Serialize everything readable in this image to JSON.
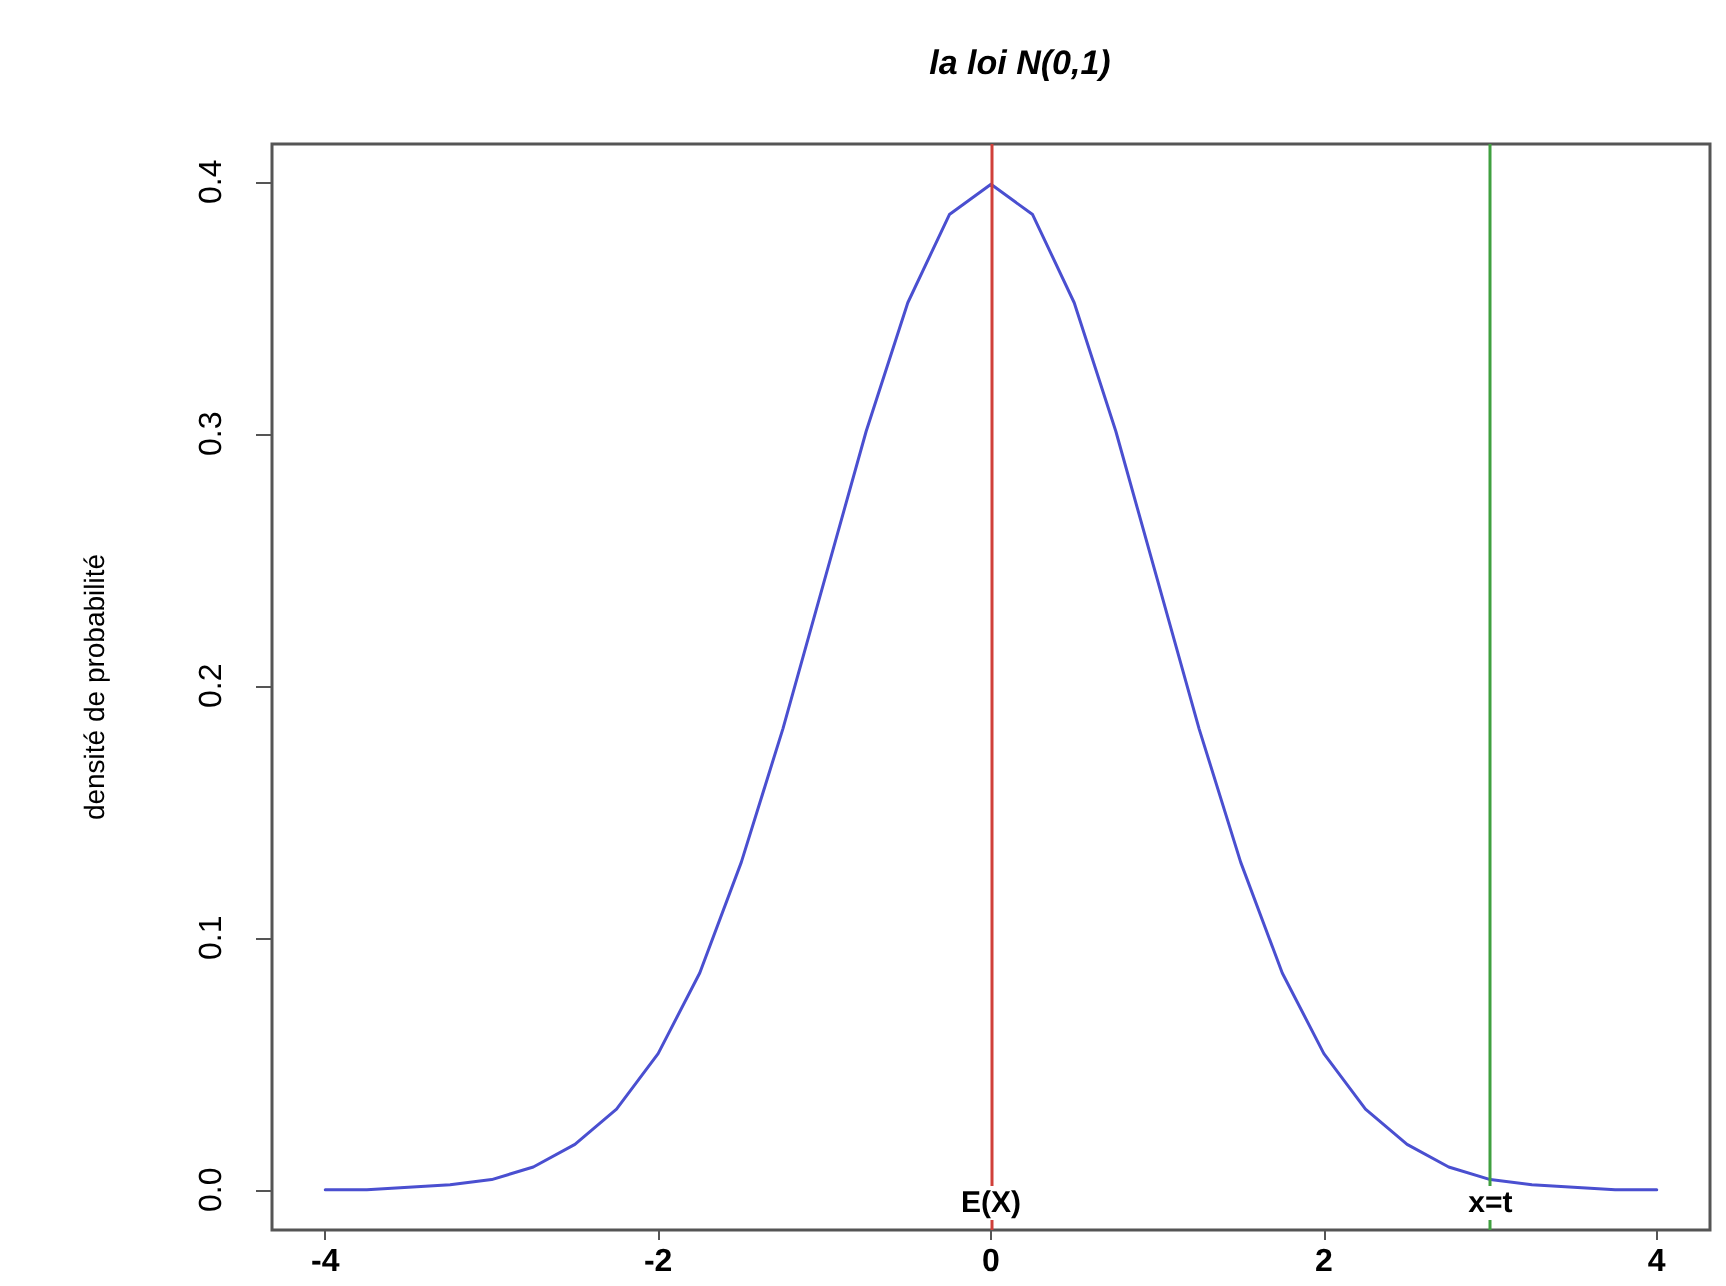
{
  "chart_data": {
    "type": "line",
    "title": "la loi N(0,1)",
    "ylabel": "densité de probabilité",
    "x": [
      -4,
      -3.75,
      -3.5,
      -3.25,
      -3,
      -2.75,
      -2.5,
      -2.25,
      -2,
      -1.75,
      -1.5,
      -1.25,
      -1,
      -0.75,
      -0.5,
      -0.25,
      0,
      0.25,
      0.5,
      0.75,
      1,
      1.25,
      1.5,
      1.75,
      2,
      2.25,
      2.5,
      2.75,
      3,
      3.25,
      3.5,
      3.75,
      4
    ],
    "series": [
      {
        "color": "#4a4fd0",
        "values": [
          0,
          0,
          0.001,
          0.002,
          0.004,
          0.009,
          0.018,
          0.032,
          0.054,
          0.086,
          0.13,
          0.183,
          0.242,
          0.301,
          0.352,
          0.387,
          0.399,
          0.387,
          0.352,
          0.301,
          0.242,
          0.183,
          0.13,
          0.086,
          0.054,
          0.032,
          0.018,
          0.009,
          0.004,
          0.002,
          0.001,
          0,
          0
        ]
      }
    ],
    "xlim": [
      -4.32,
      4.32
    ],
    "xticks": [
      -4,
      -2,
      0,
      2,
      4
    ],
    "ylim": [
      -0.016,
      0.415
    ],
    "yticks": [
      {
        "value": 0,
        "label": "0.0"
      },
      0.1,
      0.2,
      0.3,
      0.4
    ],
    "ref_lines": [
      {
        "axis": "x",
        "value": 0,
        "label": "E(X)",
        "color": "#d0403a"
      },
      {
        "axis": "x",
        "value": 3,
        "label": "x=t",
        "color": "#40a040"
      }
    ],
    "grid": false,
    "marker": "none",
    "line_style": "solid"
  }
}
